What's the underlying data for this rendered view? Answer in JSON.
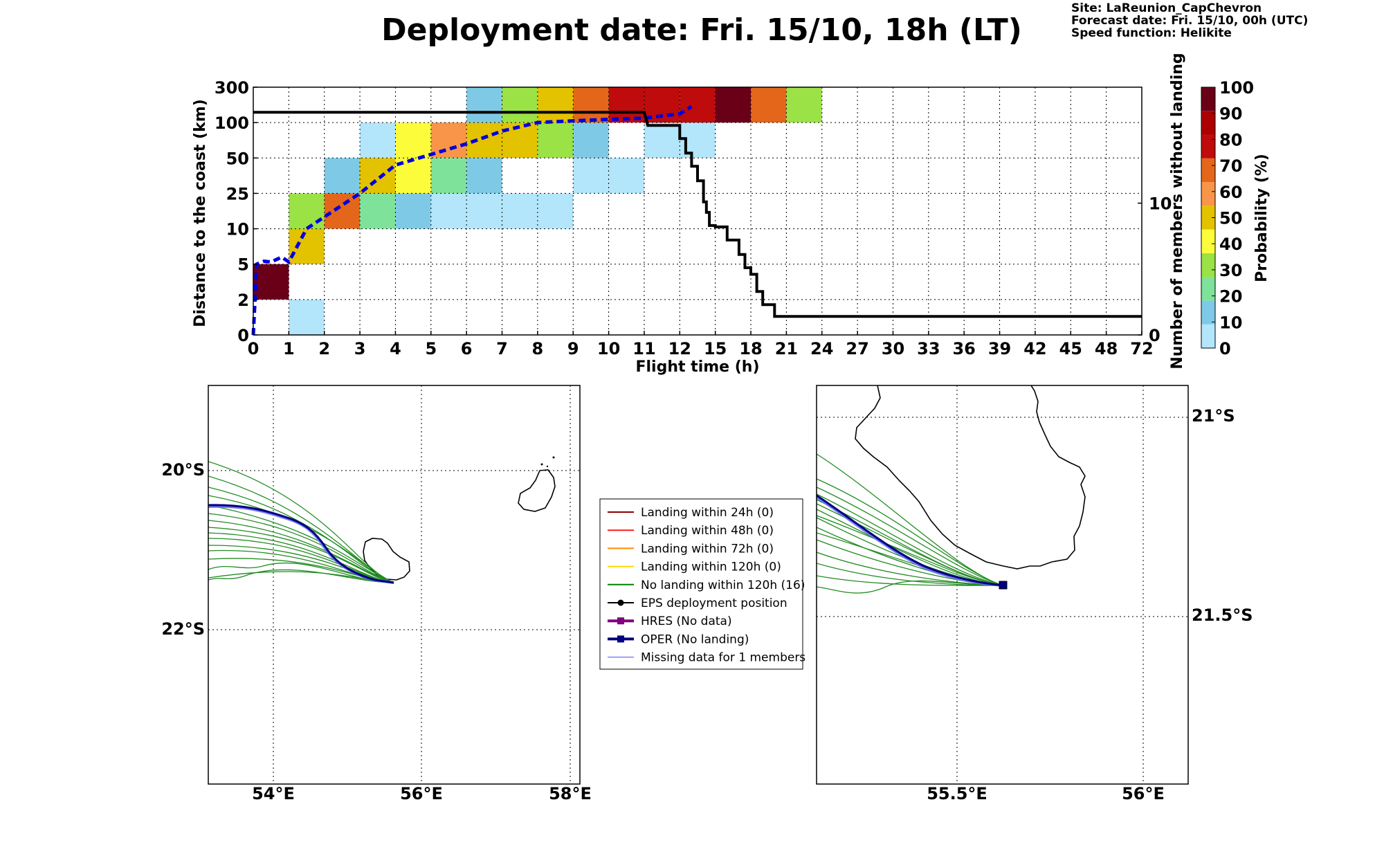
{
  "title": "Deployment date: Fri. 15/10, 18h (LT)",
  "info": [
    "Site: LaReunion_CapChevron",
    "Forecast date: Fri. 15/10, 00h (UTC)",
    "Speed function: Helikite"
  ],
  "chart_data": [
    {
      "type": "heatmap",
      "xlabel": "Flight time (h)",
      "ylabel": "Distance to the coast (km)",
      "y2label": "Number of members without landing",
      "colorbar_label": "Probability (%)",
      "x_ticks": [
        "0",
        "1",
        "2",
        "3",
        "4",
        "5",
        "6",
        "7",
        "8",
        "9",
        "10",
        "11",
        "12",
        "15",
        "18",
        "21",
        "24",
        "27",
        "30",
        "33",
        "36",
        "39",
        "42",
        "45",
        "48",
        "72"
      ],
      "y_ticks": [
        "0",
        "2",
        "5",
        "10",
        "25",
        "50",
        "100",
        "300"
      ],
      "y2_ticks": [
        "0",
        "10"
      ],
      "y2lim": [
        0,
        18.8
      ],
      "grid": true,
      "colorbar_ticks": [
        "0",
        "10",
        "20",
        "30",
        "40",
        "50",
        "60",
        "70",
        "80",
        "90",
        "100"
      ],
      "colorbar_colors": [
        "#b3e5fb",
        "#7ecae6",
        "#7fe29a",
        "#9ae245",
        "#fcfc3a",
        "#e3c200",
        "#f89548",
        "#e4661a",
        "#bf0b0b",
        "#ad0000",
        "#6a0018"
      ],
      "cells": [
        {
          "x": "0-1",
          "y": "2-5",
          "p": 100
        },
        {
          "x": "1-2",
          "y": "0-2",
          "p": 5
        },
        {
          "x": "1-2",
          "y": "5-10",
          "p": 55
        },
        {
          "x": "1-2",
          "y": "10-25",
          "p": 35
        },
        {
          "x": "2-3",
          "y": "10-25",
          "p": 75
        },
        {
          "x": "2-3",
          "y": "25-50",
          "p": 15
        },
        {
          "x": "3-4",
          "y": "10-25",
          "p": 25
        },
        {
          "x": "3-4",
          "y": "25-50",
          "p": 55
        },
        {
          "x": "3-4",
          "y": "50-100",
          "p": 5
        },
        {
          "x": "4-5",
          "y": "10-25",
          "p": 15
        },
        {
          "x": "4-5",
          "y": "25-50",
          "p": 45
        },
        {
          "x": "4-5",
          "y": "50-100",
          "p": 45
        },
        {
          "x": "5-6",
          "y": "10-25",
          "p": 5
        },
        {
          "x": "5-6",
          "y": "25-50",
          "p": 25
        },
        {
          "x": "5-6",
          "y": "50-100",
          "p": 65
        },
        {
          "x": "6-7",
          "y": "10-25",
          "p": 5
        },
        {
          "x": "6-7",
          "y": "25-50",
          "p": 15
        },
        {
          "x": "6-7",
          "y": "50-100",
          "p": 55
        },
        {
          "x": "6-7",
          "y": "100-300",
          "p": 15
        },
        {
          "x": "7-8",
          "y": "10-25",
          "p": 5
        },
        {
          "x": "7-8",
          "y": "50-100",
          "p": 55
        },
        {
          "x": "7-8",
          "y": "100-300",
          "p": 35
        },
        {
          "x": "8-9",
          "y": "10-25",
          "p": 5
        },
        {
          "x": "8-9",
          "y": "50-100",
          "p": 35
        },
        {
          "x": "8-9",
          "y": "100-300",
          "p": 55
        },
        {
          "x": "9-10",
          "y": "25-50",
          "p": 5
        },
        {
          "x": "9-10",
          "y": "50-100",
          "p": 15
        },
        {
          "x": "9-10",
          "y": "100-300",
          "p": 75
        },
        {
          "x": "10-11",
          "y": "25-50",
          "p": 5
        },
        {
          "x": "10-11",
          "y": "100-300",
          "p": 85
        },
        {
          "x": "11-12",
          "y": "50-100",
          "p": 5
        },
        {
          "x": "11-12",
          "y": "100-300",
          "p": 85
        },
        {
          "x": "12-15",
          "y": "50-100",
          "p": 5
        },
        {
          "x": "12-15",
          "y": "100-300",
          "p": 85
        },
        {
          "x": "15-18",
          "y": "100-300",
          "p": 100
        },
        {
          "x": "18-21",
          "y": "100-300",
          "p": 75
        },
        {
          "x": "21-24",
          "y": "100-300",
          "p": 35
        }
      ],
      "median_distance_km": [
        [
          0,
          0
        ],
        [
          0.1,
          5
        ],
        [
          0.3,
          5.4
        ],
        [
          0.5,
          5.3
        ],
        [
          0.8,
          6
        ],
        [
          1,
          5.3
        ],
        [
          1.5,
          10
        ],
        [
          2,
          15
        ],
        [
          3,
          25
        ],
        [
          4,
          45
        ],
        [
          5,
          55
        ],
        [
          6,
          70
        ],
        [
          7,
          88
        ],
        [
          8,
          100
        ],
        [
          9,
          110
        ],
        [
          10,
          118
        ],
        [
          11,
          125
        ],
        [
          12,
          150
        ],
        [
          13,
          190
        ]
      ],
      "members_without_landing": [
        [
          0,
          16.9
        ],
        [
          11,
          16.9
        ],
        [
          11.1,
          15.9
        ],
        [
          12,
          15.9
        ],
        [
          12,
          14.9
        ],
        [
          12.5,
          14.9
        ],
        [
          12.5,
          13.8
        ],
        [
          13,
          13.8
        ],
        [
          13,
          12.8
        ],
        [
          13.5,
          12.8
        ],
        [
          13.5,
          11.7
        ],
        [
          14,
          11.7
        ],
        [
          14,
          10.1
        ],
        [
          14.25,
          10.1
        ],
        [
          14.25,
          9.3
        ],
        [
          14.5,
          9.3
        ],
        [
          14.5,
          8.3
        ],
        [
          15,
          8.3
        ],
        [
          15,
          8.2
        ],
        [
          16,
          8.2
        ],
        [
          16,
          7.2
        ],
        [
          17,
          7.2
        ],
        [
          17,
          6.1
        ],
        [
          17.5,
          6.1
        ],
        [
          17.5,
          5.1
        ],
        [
          18,
          5.1
        ],
        [
          18,
          4.6
        ],
        [
          18.5,
          4.6
        ],
        [
          18.5,
          3.3
        ],
        [
          19,
          3.3
        ],
        [
          19,
          2.3
        ],
        [
          20,
          2.3
        ],
        [
          20,
          1.4
        ],
        [
          21,
          1.4
        ],
        [
          72,
          1.4
        ]
      ]
    },
    {
      "type": "map",
      "x_ticks": [
        "54°E",
        "56°E",
        "58°E"
      ],
      "y_ticks": [
        "20°S",
        "22°S"
      ]
    },
    {
      "type": "map",
      "x_ticks": [
        "55.5°E",
        "56°E"
      ],
      "y_ticks": [
        "21°S",
        "21.5°S"
      ]
    }
  ],
  "legend": [
    {
      "label": "Landing within 24h (0)",
      "color": "#8b0000",
      "marker": "none",
      "width": 2
    },
    {
      "label": "Landing within 48h (0)",
      "color": "#ff1a1a",
      "marker": "none",
      "width": 2
    },
    {
      "label": "Landing within 72h (0)",
      "color": "#ff8c00",
      "marker": "none",
      "width": 2
    },
    {
      "label": "Landing within 120h (0)",
      "color": "#ffd700",
      "marker": "none",
      "width": 2
    },
    {
      "label": "No landing within 120h (16)",
      "color": "#008000",
      "marker": "none",
      "width": 2
    },
    {
      "label": "EPS deployment position",
      "color": "#000000",
      "marker": "circle",
      "width": 2
    },
    {
      "label": "HRES (No data)",
      "color": "#800080",
      "marker": "square",
      "width": 4
    },
    {
      "label": "OPER (No landing)",
      "color": "#000080",
      "marker": "square",
      "width": 4
    },
    {
      "label": "Missing data for 1 members",
      "color": "#4a4aff",
      "marker": "none",
      "width": 1
    }
  ]
}
